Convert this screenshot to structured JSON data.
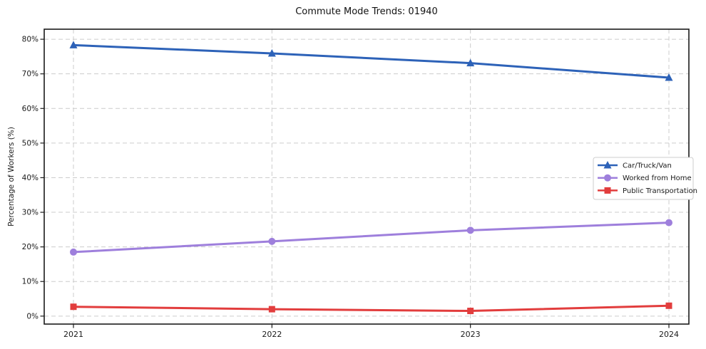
{
  "chart_data": {
    "type": "line",
    "title": "Commute Mode Trends: 01940",
    "xlabel": "",
    "ylabel": "Percentage of Workers (%)",
    "x": [
      2021,
      2022,
      2023,
      2024
    ],
    "x_tick_labels": [
      "2021",
      "2022",
      "2023",
      "2024"
    ],
    "y_ticks": [
      0,
      10,
      20,
      30,
      40,
      50,
      60,
      70,
      80
    ],
    "y_tick_suffix": "%",
    "ylim": [
      -2.3,
      82.9
    ],
    "grid": "dashed-both-axes",
    "legend_position": "center-right",
    "series": [
      {
        "name": "Car/Truck/Van",
        "values": [
          78.3,
          75.9,
          73.1,
          68.9
        ],
        "color": "#2d62b8",
        "marker": "triangle"
      },
      {
        "name": "Worked from Home",
        "values": [
          18.5,
          21.6,
          24.8,
          27.0
        ],
        "color": "#9e7fdc",
        "marker": "circle"
      },
      {
        "name": "Public Transportation",
        "values": [
          2.7,
          2.0,
          1.5,
          3.0
        ],
        "color": "#e23d3d",
        "marker": "square"
      }
    ],
    "colors": {
      "grid": "#cccccc",
      "frame": "#1a1a1a",
      "legend_border": "#cccccc",
      "background": "#ffffff"
    }
  }
}
